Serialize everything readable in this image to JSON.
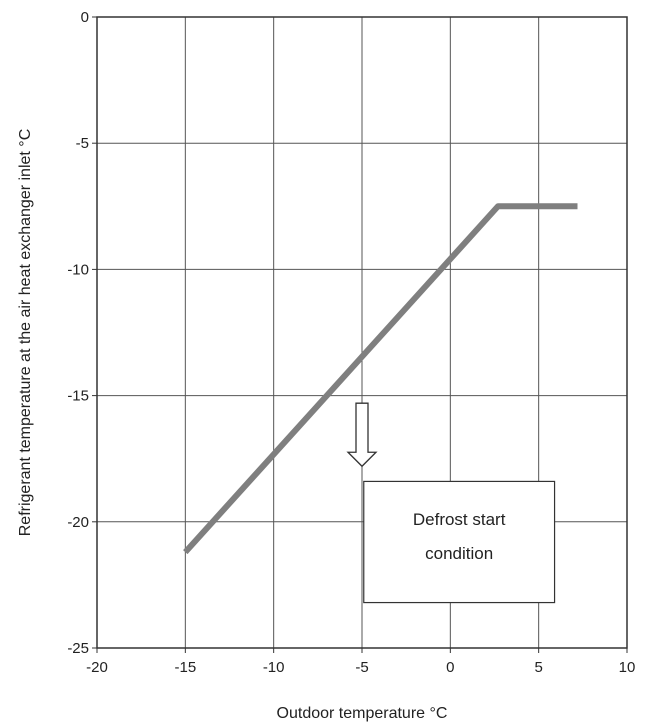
{
  "chart_data": {
    "type": "line",
    "title": "",
    "xlabel": "Outdoor temperature °C",
    "ylabel": "Refrigerant temperature at the air heat exchanger inlet °C",
    "xlim": [
      -20,
      10
    ],
    "ylim": [
      -25,
      0
    ],
    "x_ticks": [
      -20,
      -15,
      -10,
      -5,
      0,
      5,
      10
    ],
    "y_ticks": [
      0,
      -5,
      -10,
      -15,
      -20,
      -25
    ],
    "grid": true,
    "series": [
      {
        "x": [
          -15,
          2.7,
          7.2
        ],
        "y": [
          -21.2,
          -7.5,
          -7.5
        ]
      }
    ],
    "annotation": {
      "lines": [
        "Defrost start",
        "condition"
      ],
      "arrow_x": -5,
      "arrow_from_y": -15.3,
      "arrow_to_y": -17.8,
      "box": {
        "x0": -4.9,
        "x1": 5.9,
        "y0": -18.4,
        "y1": -23.2
      }
    },
    "colors": {
      "line": "#7f7f7f",
      "grid": "#555555",
      "frame": "#333333"
    }
  }
}
